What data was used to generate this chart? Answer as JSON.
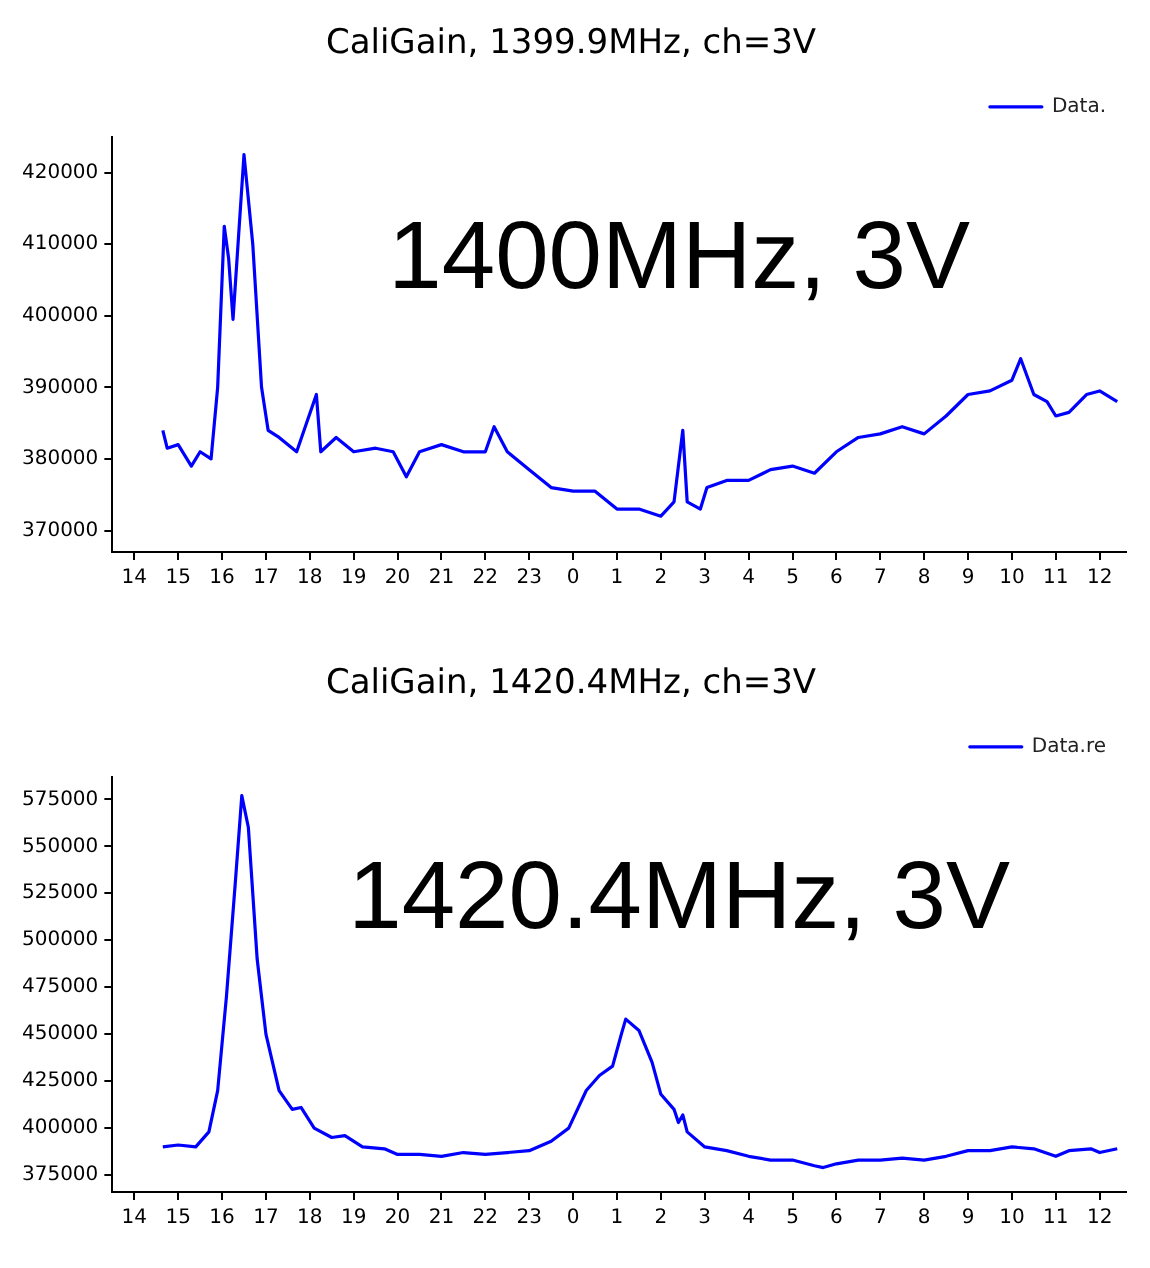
{
  "chart_data": [
    {
      "type": "line",
      "title": "CaliGain, 1399.9MHz, ch=3V",
      "annotations": [
        "1400MHz, 3V"
      ],
      "legend": "top right",
      "grid": false,
      "marker": "none",
      "line_style": "solid",
      "xlim": [
        "2000-01-01T13:30",
        "2000-01-02T12:36"
      ],
      "xticks": [
        {
          "value": "2000-01-01T14:00",
          "label": "14"
        },
        {
          "value": "2000-01-01T15:00",
          "label": "15"
        },
        {
          "value": "2000-01-01T16:00",
          "label": "16"
        },
        {
          "value": "2000-01-01T17:00",
          "label": "17"
        },
        {
          "value": "2000-01-01T18:00",
          "label": "18"
        },
        {
          "value": "2000-01-01T19:00",
          "label": "19"
        },
        {
          "value": "2000-01-01T20:00",
          "label": "20"
        },
        {
          "value": "2000-01-01T21:00",
          "label": "21"
        },
        {
          "value": "2000-01-01T22:00",
          "label": "22"
        },
        {
          "value": "2000-01-01T23:00",
          "label": "23"
        },
        {
          "value": "2000-01-02T00:00",
          "label": "0"
        },
        {
          "value": "2000-01-02T01:00",
          "label": "1"
        },
        {
          "value": "2000-01-02T02:00",
          "label": "2"
        },
        {
          "value": "2000-01-02T03:00",
          "label": "3"
        },
        {
          "value": "2000-01-02T04:00",
          "label": "4"
        },
        {
          "value": "2000-01-02T05:00",
          "label": "5"
        },
        {
          "value": "2000-01-02T06:00",
          "label": "6"
        },
        {
          "value": "2000-01-02T07:00",
          "label": "7"
        },
        {
          "value": "2000-01-02T08:00",
          "label": "8"
        },
        {
          "value": "2000-01-02T09:00",
          "label": "9"
        },
        {
          "value": "2000-01-02T10:00",
          "label": "10"
        },
        {
          "value": "2000-01-02T11:00",
          "label": "11"
        },
        {
          "value": "2000-01-02T12:00",
          "label": "12"
        }
      ],
      "ylim": [
        367000,
        425000
      ],
      "yticks": [
        370000,
        380000,
        390000,
        400000,
        410000,
        420000
      ],
      "x": [
        "2000-01-01T14:39",
        "2000-01-01T14:45",
        "2000-01-01T15:00",
        "2000-01-01T15:18",
        "2000-01-01T15:30",
        "2000-01-01T15:45",
        "2000-01-01T15:54",
        "2000-01-01T16:03",
        "2000-01-01T16:09",
        "2000-01-01T16:15",
        "2000-01-01T16:30",
        "2000-01-01T16:42",
        "2000-01-01T16:54",
        "2000-01-01T17:03",
        "2000-01-01T17:18",
        "2000-01-01T17:42",
        "2000-01-01T18:09",
        "2000-01-01T18:15",
        "2000-01-01T18:36",
        "2000-01-01T19:00",
        "2000-01-01T19:30",
        "2000-01-01T19:54",
        "2000-01-01T20:12",
        "2000-01-01T20:30",
        "2000-01-01T21:00",
        "2000-01-01T21:30",
        "2000-01-01T22:00",
        "2000-01-01T22:12",
        "2000-01-01T22:30",
        "2000-01-01T23:00",
        "2000-01-01T23:30",
        "2000-01-02T00:00",
        "2000-01-02T00:30",
        "2000-01-02T01:00",
        "2000-01-02T01:30",
        "2000-01-02T02:00",
        "2000-01-02T02:18",
        "2000-01-02T02:30",
        "2000-01-02T02:36",
        "2000-01-02T02:54",
        "2000-01-02T03:03",
        "2000-01-02T03:30",
        "2000-01-02T04:00",
        "2000-01-02T04:30",
        "2000-01-02T05:00",
        "2000-01-02T05:30",
        "2000-01-02T06:00",
        "2000-01-02T06:30",
        "2000-01-02T07:00",
        "2000-01-02T07:30",
        "2000-01-02T08:00",
        "2000-01-02T08:30",
        "2000-01-02T09:00",
        "2000-01-02T09:30",
        "2000-01-02T10:00",
        "2000-01-02T10:12",
        "2000-01-02T10:30",
        "2000-01-02T10:48",
        "2000-01-02T11:00",
        "2000-01-02T11:18",
        "2000-01-02T11:42",
        "2000-01-02T12:00",
        "2000-01-02T12:24"
      ],
      "series": [
        {
          "name": "Data.",
          "color": "#0000ff",
          "values": [
            384000,
            381500,
            382000,
            379000,
            381000,
            380000,
            390000,
            412500,
            408000,
            399500,
            422500,
            410000,
            390000,
            384000,
            383000,
            381000,
            389000,
            381000,
            383000,
            381000,
            381500,
            381000,
            377500,
            381000,
            382000,
            381000,
            381000,
            384500,
            381000,
            378500,
            376000,
            375500,
            375500,
            373000,
            373000,
            372000,
            374000,
            384000,
            374000,
            373000,
            376000,
            377000,
            377000,
            378500,
            379000,
            378000,
            381000,
            383000,
            383500,
            384500,
            383500,
            386000,
            389000,
            389500,
            391000,
            394000,
            389000,
            388000,
            386000,
            386500,
            389000,
            389500,
            388000
          ]
        }
      ]
    },
    {
      "type": "line",
      "title": "CaliGain, 1420.4MHz, ch=3V",
      "annotations": [
        "1420.4MHz, 3V"
      ],
      "legend": "top right",
      "grid": false,
      "marker": "none",
      "line_style": "solid",
      "xlim": [
        "2000-01-01T13:30",
        "2000-01-02T12:36"
      ],
      "xticks": [
        {
          "value": "2000-01-01T14:00",
          "label": "14"
        },
        {
          "value": "2000-01-01T15:00",
          "label": "15"
        },
        {
          "value": "2000-01-01T16:00",
          "label": "16"
        },
        {
          "value": "2000-01-01T17:00",
          "label": "17"
        },
        {
          "value": "2000-01-01T18:00",
          "label": "18"
        },
        {
          "value": "2000-01-01T19:00",
          "label": "19"
        },
        {
          "value": "2000-01-01T20:00",
          "label": "20"
        },
        {
          "value": "2000-01-01T21:00",
          "label": "21"
        },
        {
          "value": "2000-01-01T22:00",
          "label": "22"
        },
        {
          "value": "2000-01-01T23:00",
          "label": "23"
        },
        {
          "value": "2000-01-02T00:00",
          "label": "0"
        },
        {
          "value": "2000-01-02T01:00",
          "label": "1"
        },
        {
          "value": "2000-01-02T02:00",
          "label": "2"
        },
        {
          "value": "2000-01-02T03:00",
          "label": "3"
        },
        {
          "value": "2000-01-02T04:00",
          "label": "4"
        },
        {
          "value": "2000-01-02T05:00",
          "label": "5"
        },
        {
          "value": "2000-01-02T06:00",
          "label": "6"
        },
        {
          "value": "2000-01-02T07:00",
          "label": "7"
        },
        {
          "value": "2000-01-02T08:00",
          "label": "8"
        },
        {
          "value": "2000-01-02T09:00",
          "label": "9"
        },
        {
          "value": "2000-01-02T10:00",
          "label": "10"
        },
        {
          "value": "2000-01-02T11:00",
          "label": "11"
        },
        {
          "value": "2000-01-02T12:00",
          "label": "12"
        }
      ],
      "ylim": [
        366000,
        587000
      ],
      "yticks": [
        375000,
        400000,
        425000,
        450000,
        475000,
        500000,
        525000,
        550000,
        575000
      ],
      "x": [
        "2000-01-01T14:39",
        "2000-01-01T15:00",
        "2000-01-01T15:24",
        "2000-01-01T15:42",
        "2000-01-01T15:54",
        "2000-01-01T16:06",
        "2000-01-01T16:18",
        "2000-01-01T16:27",
        "2000-01-01T16:36",
        "2000-01-01T16:48",
        "2000-01-01T17:00",
        "2000-01-01T17:18",
        "2000-01-01T17:36",
        "2000-01-01T17:48",
        "2000-01-01T18:06",
        "2000-01-01T18:30",
        "2000-01-01T18:48",
        "2000-01-01T19:12",
        "2000-01-01T19:42",
        "2000-01-01T20:00",
        "2000-01-01T20:30",
        "2000-01-01T21:00",
        "2000-01-01T21:30",
        "2000-01-01T22:00",
        "2000-01-01T22:30",
        "2000-01-01T23:00",
        "2000-01-01T23:30",
        "2000-01-01T23:54",
        "2000-01-02T00:06",
        "2000-01-02T00:18",
        "2000-01-02T00:36",
        "2000-01-02T00:54",
        "2000-01-02T01:06",
        "2000-01-02T01:12",
        "2000-01-02T01:30",
        "2000-01-02T01:48",
        "2000-01-02T02:00",
        "2000-01-02T02:18",
        "2000-01-02T02:24",
        "2000-01-02T02:30",
        "2000-01-02T02:36",
        "2000-01-02T03:00",
        "2000-01-02T03:30",
        "2000-01-02T04:00",
        "2000-01-02T04:30",
        "2000-01-02T05:00",
        "2000-01-02T05:30",
        "2000-01-02T05:42",
        "2000-01-02T06:00",
        "2000-01-02T06:30",
        "2000-01-02T07:00",
        "2000-01-02T07:30",
        "2000-01-02T08:00",
        "2000-01-02T08:30",
        "2000-01-02T09:00",
        "2000-01-02T09:30",
        "2000-01-02T10:00",
        "2000-01-02T10:30",
        "2000-01-02T11:00",
        "2000-01-02T11:18",
        "2000-01-02T11:48",
        "2000-01-02T12:00",
        "2000-01-02T12:24"
      ],
      "series": [
        {
          "name": "Data.re",
          "color": "#0000ff",
          "values": [
            390000,
            391000,
            390000,
            398000,
            420000,
            470000,
            530000,
            577000,
            560000,
            490000,
            450000,
            420000,
            410000,
            411000,
            400000,
            395000,
            396000,
            390000,
            389000,
            386000,
            386000,
            385000,
            387000,
            386000,
            387000,
            388000,
            393000,
            400000,
            410000,
            420000,
            428000,
            433000,
            450000,
            458000,
            452000,
            435000,
            418000,
            410000,
            403000,
            407000,
            398000,
            390000,
            388000,
            385000,
            383000,
            383000,
            380000,
            379000,
            381000,
            383000,
            383000,
            384000,
            383000,
            385000,
            388000,
            388000,
            390000,
            389000,
            385000,
            388000,
            389000,
            387000,
            389000
          ]
        }
      ]
    }
  ]
}
